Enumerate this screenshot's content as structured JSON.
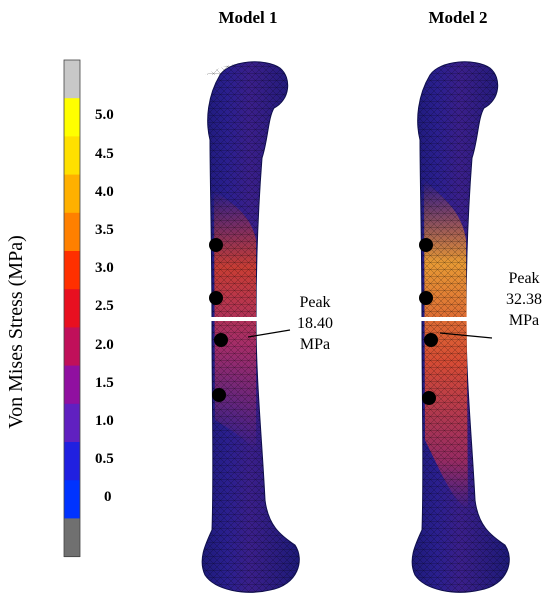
{
  "models": [
    {
      "title": "Model 1",
      "peak": {
        "label": "Peak",
        "value": "18.40",
        "unit": "MPa"
      }
    },
    {
      "title": "Model 2",
      "peak": {
        "label": "Peak",
        "value": "32.38",
        "unit": "MPa"
      }
    }
  ],
  "colorbar": {
    "label": "Von Mises Stress (MPa)",
    "ticks": [
      "5.0",
      "4.5",
      "4.0",
      "3.5",
      "3.0",
      "2.5",
      "2.0",
      "1.5",
      "1.0",
      "0.5",
      "0"
    ],
    "colors": [
      "#c8c8c8",
      "#ffff00",
      "#ffe000",
      "#ffb000",
      "#ff8000",
      "#ff3000",
      "#e81020",
      "#c0105a",
      "#9010a0",
      "#6020c0",
      "#2020e0",
      "#0033ff",
      "#707070"
    ]
  }
}
